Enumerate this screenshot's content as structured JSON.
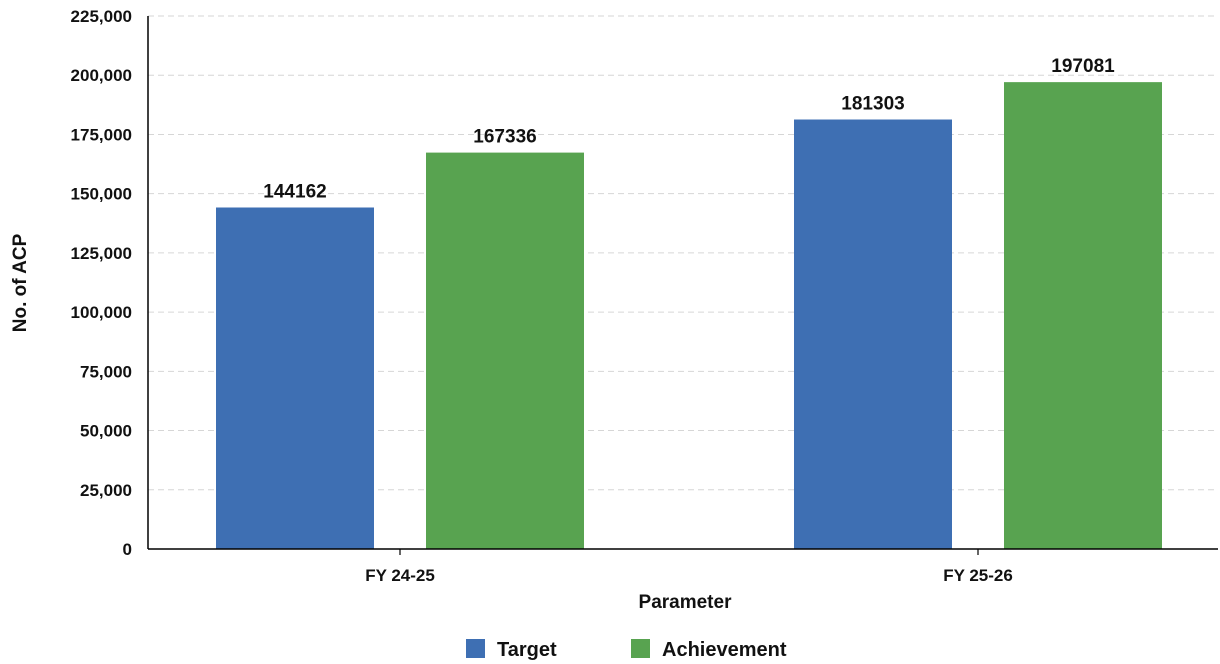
{
  "chart_data": {
    "type": "bar",
    "categories": [
      "FY 24-25",
      "FY 25-26"
    ],
    "series": [
      {
        "name": "Target",
        "values": [
          144162,
          181303
        ],
        "color": "#3e6fb3"
      },
      {
        "name": "Achievement",
        "values": [
          167336,
          197081
        ],
        "color": "#58a350"
      }
    ],
    "data_labels": [
      [
        "144162",
        "181303"
      ],
      [
        "167336",
        "197081"
      ]
    ],
    "xlabel": "Parameter",
    "ylabel": "No. of ACP",
    "ylim": [
      0,
      225000
    ],
    "yticks": [
      0,
      25000,
      50000,
      75000,
      100000,
      125000,
      150000,
      175000,
      200000,
      225000
    ],
    "ytick_labels": [
      "0",
      "25,000",
      "50,000",
      "75,000",
      "100,000",
      "125,000",
      "150,000",
      "175,000",
      "200,000",
      "225,000"
    ],
    "grid": true,
    "legend_position": "bottom-center"
  }
}
